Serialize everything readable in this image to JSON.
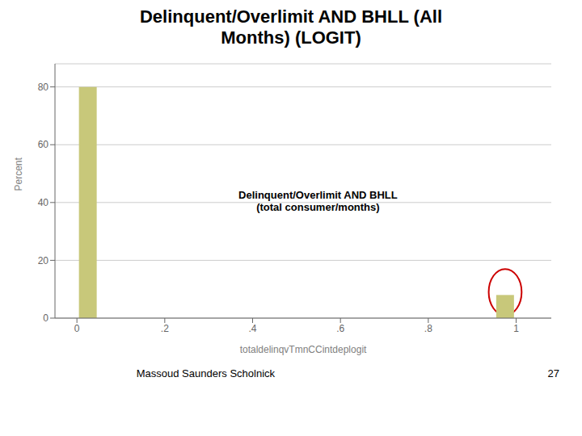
{
  "chart_data": {
    "type": "bar",
    "title": "Delinquent/Overlimit AND BHLL (All\nMonths) (LOGIT)",
    "x": [
      0.025,
      0.975
    ],
    "values": [
      80.0,
      8.0
    ],
    "color": "#c8c87a",
    "xlabel": "totaldelinqvTmnCCintdeplogit",
    "ylabel": "Percent",
    "xlim": [
      -0.05,
      1.08
    ],
    "ylim": [
      0,
      88
    ],
    "xticks": [
      0,
      {
        "value": 0.2,
        "label": ".2"
      },
      {
        "value": 0.4,
        "label": ".4"
      },
      {
        "value": 0.6,
        "label": ".6"
      },
      {
        "value": 0.8,
        "label": ".8"
      },
      1
    ],
    "yticks": [
      0,
      20,
      40,
      60,
      80
    ],
    "grid": true,
    "annotation": "Delinquent/Overlimit AND BHLL\n(total consumer/months)",
    "ellipse": {
      "x": 0.975,
      "y": 9.0,
      "width": 0.075,
      "height": 16.0,
      "color": "#cc0000"
    },
    "footer": [
      "Massoud Saunders Scholnick",
      "27"
    ]
  }
}
